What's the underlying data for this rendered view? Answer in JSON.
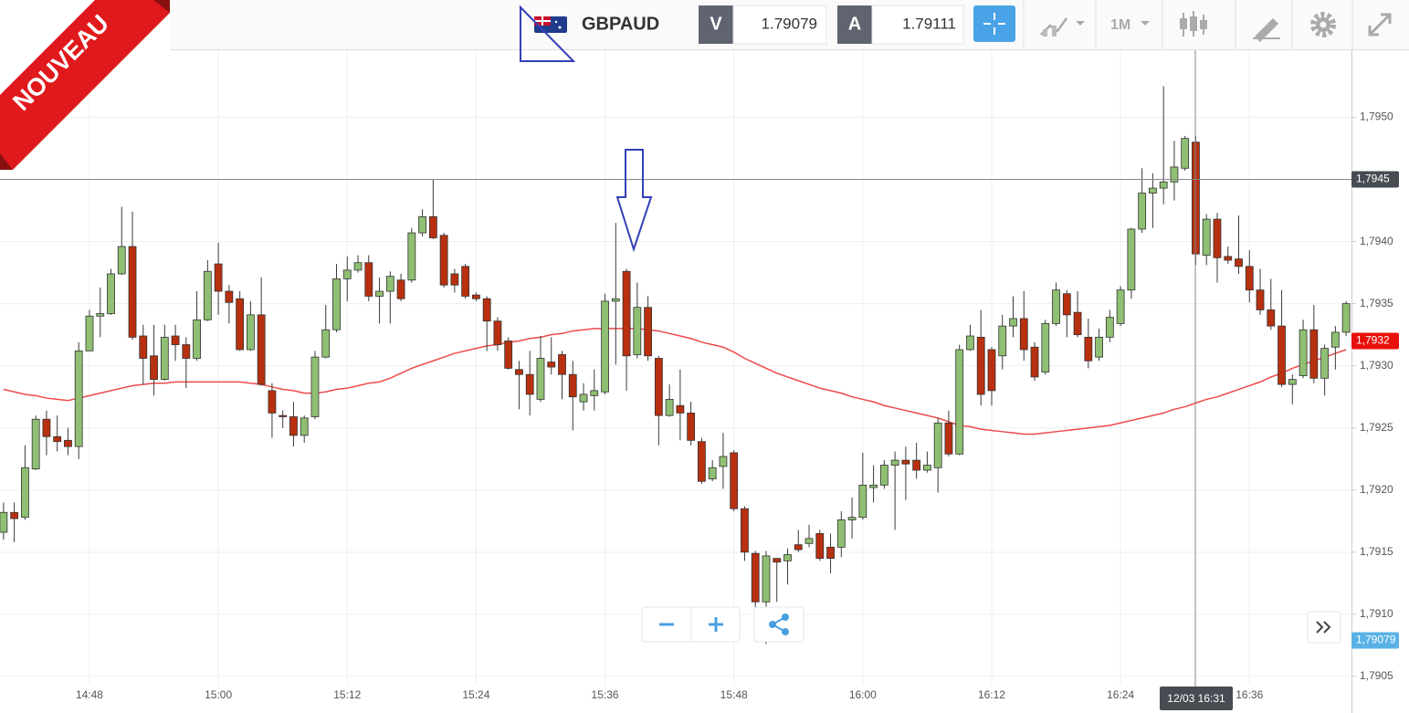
{
  "badge": "NOUVEAU",
  "toolbar": {
    "symbol": "GBPAUD",
    "bid_label": "V",
    "bid": "1.79079",
    "ask_label": "A",
    "ask": "1.79111",
    "timeframe": "1M"
  },
  "chart_data": {
    "type": "candlestick",
    "categories": [
      null,
      null,
      null,
      null,
      null,
      null,
      null,
      null,
      "14:48",
      null,
      null,
      null,
      null,
      null,
      null,
      null,
      null,
      null,
      null,
      null,
      "15:00",
      null,
      null,
      null,
      null,
      null,
      null,
      null,
      null,
      null,
      null,
      null,
      "15:12",
      null,
      null,
      null,
      null,
      null,
      null,
      null,
      null,
      null,
      null,
      null,
      "15:24",
      null,
      null,
      null,
      null,
      null,
      null,
      null,
      null,
      null,
      null,
      null,
      "15:36",
      null,
      null,
      null,
      null,
      null,
      null,
      null,
      null,
      null,
      null,
      null,
      "15:48",
      null,
      null,
      null,
      null,
      null,
      null,
      null,
      null,
      null,
      null,
      null,
      "16:00",
      null,
      null,
      null,
      null,
      null,
      null,
      null,
      null,
      null,
      null,
      null,
      "16:12",
      null,
      null,
      null,
      null,
      null,
      null,
      null,
      null,
      null,
      null,
      null,
      "16:24",
      null,
      null,
      null,
      null,
      null,
      null,
      null,
      null,
      null,
      null,
      null,
      "16:36",
      null,
      null,
      null,
      null,
      null,
      null,
      null,
      null,
      null
    ],
    "open": [
      1.79166,
      1.79182,
      1.79178,
      1.79217,
      1.79257,
      1.79243,
      1.7924,
      1.79235,
      1.79312,
      1.7934,
      1.79342,
      1.79374,
      1.79396,
      1.79324,
      1.79308,
      1.79289,
      1.79324,
      1.79317,
      1.79306,
      1.79337,
      1.79382,
      1.7936,
      1.79354,
      1.79313,
      1.79341,
      1.7928,
      1.7926,
      1.79259,
      1.79244,
      1.79259,
      1.79307,
      1.79329,
      1.7937,
      1.79377,
      1.79383,
      1.79356,
      1.7936,
      1.79369,
      1.79369,
      1.79407,
      1.7942,
      1.79405,
      1.79374,
      1.7938,
      1.79357,
      1.79354,
      1.79336,
      1.7932,
      1.79297,
      1.79293,
      1.79273,
      1.79303,
      1.79309,
      1.79293,
      1.79271,
      1.79276,
      1.79279,
      1.79352,
      1.79376,
      1.79309,
      1.79347,
      1.79306,
      1.7926,
      1.79268,
      1.79262,
      1.79239,
      1.79209,
      1.79219,
      1.7923,
      1.79185,
      1.79149,
      1.7911,
      1.79145,
      1.79143,
      1.79156,
      1.79157,
      1.79165,
      1.79154,
      1.79154,
      1.79176,
      1.79178,
      1.79202,
      1.79204,
      1.7922,
      1.79224,
      1.79224,
      1.79216,
      1.79218,
      1.79254,
      1.79229,
      1.79313,
      1.79323,
      1.79313,
      1.79308,
      1.79332,
      1.79338,
      1.79315,
      1.79295,
      1.79334,
      1.79358,
      1.79343,
      1.79323,
      1.79307,
      1.79323,
      1.79334,
      1.79361,
      1.7941,
      1.79439,
      1.79443,
      1.79448,
      1.79459,
      1.7948,
      1.79389,
      1.79418,
      1.79388,
      1.79386,
      1.7938,
      1.79361,
      1.79345,
      1.79332,
      1.79285,
      1.79292,
      1.79329,
      1.7929,
      1.79315,
      1.79327
    ],
    "high": [
      1.7919,
      1.7919,
      1.79236,
      1.7926,
      1.79264,
      1.7926,
      1.7925,
      1.79319,
      1.79345,
      1.79363,
      1.79378,
      1.79428,
      1.79424,
      1.79333,
      1.79333,
      1.79333,
      1.79333,
      1.79323,
      1.7936,
      1.79385,
      1.79399,
      1.79365,
      1.7936,
      1.79352,
      1.79371,
      1.79286,
      1.79264,
      1.79271,
      1.7926,
      1.79312,
      1.79349,
      1.79382,
      1.79388,
      1.79389,
      1.79389,
      1.79371,
      1.79376,
      1.79374,
      1.79411,
      1.79426,
      1.7945,
      1.79407,
      1.79378,
      1.79382,
      1.79359,
      1.79356,
      1.79339,
      1.79323,
      1.79304,
      1.79312,
      1.79324,
      1.79323,
      1.79312,
      1.79304,
      1.79286,
      1.79297,
      1.79358,
      1.79415,
      1.79378,
      1.79367,
      1.79356,
      1.79308,
      1.79285,
      1.79297,
      1.79271,
      1.79242,
      1.79224,
      1.79246,
      1.79232,
      1.79187,
      1.79151,
      1.79151,
      1.79145,
      1.79153,
      1.79168,
      1.79172,
      1.79168,
      1.79165,
      1.79183,
      1.79194,
      1.7923,
      1.7922,
      1.79224,
      1.79231,
      1.79235,
      1.79238,
      1.79231,
      1.79258,
      1.79264,
      1.79317,
      1.79333,
      1.79345,
      1.79315,
      1.79341,
      1.79356,
      1.7936,
      1.79319,
      1.79337,
      1.79367,
      1.79361,
      1.7936,
      1.79338,
      1.7933,
      1.79345,
      1.79364,
      1.79411,
      1.79459,
      1.79455,
      1.79525,
      1.79481,
      1.79485,
      1.79485,
      1.79422,
      1.79423,
      1.79396,
      1.79421,
      1.79393,
      1.79378,
      1.7937,
      1.79361,
      1.79293,
      1.79337,
      1.79349,
      1.79317,
      1.79332,
      1.79352
    ],
    "low": [
      1.7916,
      1.79158,
      1.79176,
      1.79216,
      1.79228,
      1.79231,
      1.79228,
      1.79225,
      1.79312,
      1.79323,
      1.79341,
      1.79373,
      1.79321,
      1.79285,
      1.79276,
      1.79288,
      1.79304,
      1.79282,
      1.79304,
      1.79336,
      1.79341,
      1.79334,
      1.79312,
      1.79312,
      1.79284,
      1.79242,
      1.7925,
      1.79235,
      1.79238,
      1.79257,
      1.79306,
      1.79327,
      1.79352,
      1.79375,
      1.79352,
      1.79334,
      1.79334,
      1.79352,
      1.79367,
      1.79404,
      1.79402,
      1.79363,
      1.79359,
      1.79354,
      1.79352,
      1.79312,
      1.79312,
      1.79297,
      1.79265,
      1.7926,
      1.79271,
      1.79293,
      1.79273,
      1.79248,
      1.79264,
      1.79264,
      1.79277,
      1.79301,
      1.7928,
      1.79306,
      1.79304,
      1.79236,
      1.79259,
      1.7924,
      1.79236,
      1.79205,
      1.79207,
      1.79201,
      1.79183,
      1.79143,
      1.79104,
      1.79076,
      1.7911,
      1.79124,
      1.7915,
      1.79154,
      1.79143,
      1.79133,
      1.79146,
      1.79161,
      1.79176,
      1.7919,
      1.79201,
      1.79168,
      1.79192,
      1.79209,
      1.79214,
      1.79198,
      1.79227,
      1.79228,
      1.79312,
      1.79268,
      1.79268,
      1.79297,
      1.79323,
      1.79304,
      1.79288,
      1.79293,
      1.79332,
      1.79323,
      1.79323,
      1.79298,
      1.79304,
      1.79319,
      1.79332,
      1.79354,
      1.79407,
      1.79411,
      1.7943,
      1.79433,
      1.79457,
      1.79381,
      1.79381,
      1.79367,
      1.79382,
      1.79374,
      1.79351,
      1.79341,
      1.79329,
      1.79283,
      1.79269,
      1.7929,
      1.79286,
      1.79276,
      1.79297,
      1.79324
    ],
    "close": [
      1.79182,
      1.79177,
      1.79218,
      1.79257,
      1.79243,
      1.79239,
      1.79235,
      1.79312,
      1.7934,
      1.79342,
      1.79374,
      1.79396,
      1.79323,
      1.79306,
      1.79289,
      1.79323,
      1.79317,
      1.79306,
      1.79337,
      1.79376,
      1.7936,
      1.79351,
      1.79313,
      1.79341,
      1.79285,
      1.79262,
      1.79259,
      1.79244,
      1.79258,
      1.79307,
      1.79329,
      1.7937,
      1.79377,
      1.79383,
      1.79356,
      1.7936,
      1.79372,
      1.79354,
      1.79407,
      1.7942,
      1.79403,
      1.79365,
      1.79365,
      1.79356,
      1.79354,
      1.79336,
      1.79317,
      1.79298,
      1.79293,
      1.79277,
      1.79306,
      1.79299,
      1.79293,
      1.79275,
      1.79277,
      1.7928,
      1.79352,
      1.79354,
      1.79308,
      1.79347,
      1.79308,
      1.7926,
      1.79273,
      1.79262,
      1.7924,
      1.79207,
      1.79218,
      1.79227,
      1.79185,
      1.7915,
      1.7911,
      1.79147,
      1.79142,
      1.79148,
      1.79152,
      1.79161,
      1.79145,
      1.79145,
      1.79176,
      1.79178,
      1.79204,
      1.79204,
      1.7922,
      1.79224,
      1.79221,
      1.79216,
      1.7922,
      1.79254,
      1.79229,
      1.79313,
      1.79324,
      1.79277,
      1.7928,
      1.79332,
      1.79338,
      1.79313,
      1.79291,
      1.79334,
      1.79361,
      1.79341,
      1.79325,
      1.79304,
      1.79323,
      1.79339,
      1.79361,
      1.7941,
      1.79439,
      1.79443,
      1.79448,
      1.7946,
      1.79483,
      1.7939,
      1.79418,
      1.79387,
      1.79385,
      1.7938,
      1.79361,
      1.79345,
      1.79332,
      1.79285,
      1.79289,
      1.79329,
      1.7929,
      1.79314,
      1.79327,
      1.7935
    ],
    "up_color": "#8fbf72",
    "down_color": "#b8300f",
    "series": [
      {
        "color": "#ee4a4a",
        "values": [
          1.79281,
          1.79279,
          1.79277,
          1.79276,
          1.79274,
          1.79273,
          1.79272,
          1.79274,
          1.79276,
          1.79278,
          1.7928,
          1.79282,
          1.79284,
          1.79285,
          1.79286,
          1.79286,
          1.79287,
          1.79287,
          1.79287,
          1.79287,
          1.79287,
          1.79287,
          1.79287,
          1.79286,
          1.79285,
          1.79283,
          1.79281,
          1.7928,
          1.79278,
          1.79278,
          1.79279,
          1.79281,
          1.79282,
          1.79284,
          1.79286,
          1.79287,
          1.7929,
          1.79294,
          1.79298,
          1.79301,
          1.79304,
          1.79307,
          1.7931,
          1.79312,
          1.79314,
          1.79316,
          1.79317,
          1.79319,
          1.7932,
          1.79322,
          1.79323,
          1.79325,
          1.79326,
          1.79328,
          1.79329,
          1.7933,
          1.7933,
          1.7933,
          1.7933,
          1.7933,
          1.79329,
          1.79328,
          1.79326,
          1.79324,
          1.79322,
          1.79319,
          1.79317,
          1.79315,
          1.79311,
          1.79306,
          1.79302,
          1.79298,
          1.79294,
          1.79291,
          1.79288,
          1.79285,
          1.79282,
          1.7928,
          1.79278,
          1.79275,
          1.79273,
          1.79271,
          1.79268,
          1.79266,
          1.79264,
          1.79262,
          1.7926,
          1.79258,
          1.79255,
          1.79252,
          1.79251,
          1.79249,
          1.79248,
          1.79247,
          1.79246,
          1.79245,
          1.79245,
          1.79246,
          1.79247,
          1.79248,
          1.79249,
          1.7925,
          1.79251,
          1.79252,
          1.79254,
          1.79256,
          1.79258,
          1.7926,
          1.79262,
          1.79265,
          1.79267,
          1.7927,
          1.79273,
          1.79275,
          1.79278,
          1.79281,
          1.79284,
          1.79287,
          1.79291,
          1.79294,
          1.79298,
          1.79301,
          1.79304,
          1.79307,
          1.7931,
          1.79313
        ]
      }
    ],
    "ylim": [
      1.79047,
      1.79554
    ],
    "yticks": [
      {
        "value": 1.7905,
        "label": "1,7905"
      },
      {
        "value": 1.791,
        "label": "1,7910"
      },
      {
        "value": 1.7915,
        "label": "1,7915"
      },
      {
        "value": 1.792,
        "label": "1,7920"
      },
      {
        "value": 1.7925,
        "label": "1,7925"
      },
      {
        "value": 1.793,
        "label": "1,7930"
      },
      {
        "value": 1.7935,
        "label": "1,7935"
      },
      {
        "value": 1.794,
        "label": "1,7940"
      },
      {
        "value": 1.7945,
        "label": "1,7945"
      },
      {
        "value": 1.795,
        "label": "1,7950"
      }
    ],
    "grid": true,
    "crosshair": {
      "price": {
        "value": 1.7945,
        "label": "1,7945"
      },
      "time_label": "12/03 16:31"
    },
    "last_price": {
      "value": 1.7932,
      "label": "1,7932"
    },
    "bid_price": {
      "value": 1.79079,
      "label": "1,79079"
    }
  }
}
